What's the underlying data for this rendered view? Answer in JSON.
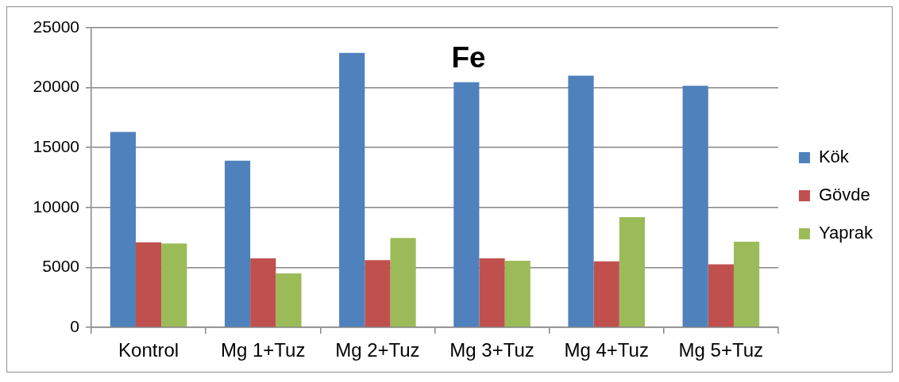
{
  "chart_data": {
    "type": "bar",
    "title": "Fe",
    "categories": [
      "Kontrol",
      "Mg 1+Tuz",
      "Mg 2+Tuz",
      "Mg 3+Tuz",
      "Mg 4+Tuz",
      "Mg 5+Tuz"
    ],
    "series": [
      {
        "name": "Kök",
        "color": "#4f81bd",
        "values": [
          16300,
          13900,
          22900,
          20450,
          21000,
          20150
        ]
      },
      {
        "name": "Gövde",
        "color": "#c0504d",
        "values": [
          7100,
          5750,
          5600,
          5750,
          5500,
          5250
        ]
      },
      {
        "name": "Yaprak",
        "color": "#9bbb59",
        "values": [
          7000,
          4500,
          7450,
          5550,
          9200,
          7150
        ]
      }
    ],
    "ylim": [
      0,
      25000
    ],
    "yticks": [
      0,
      5000,
      10000,
      15000,
      20000,
      25000
    ],
    "grid": "y",
    "legend": "right"
  }
}
